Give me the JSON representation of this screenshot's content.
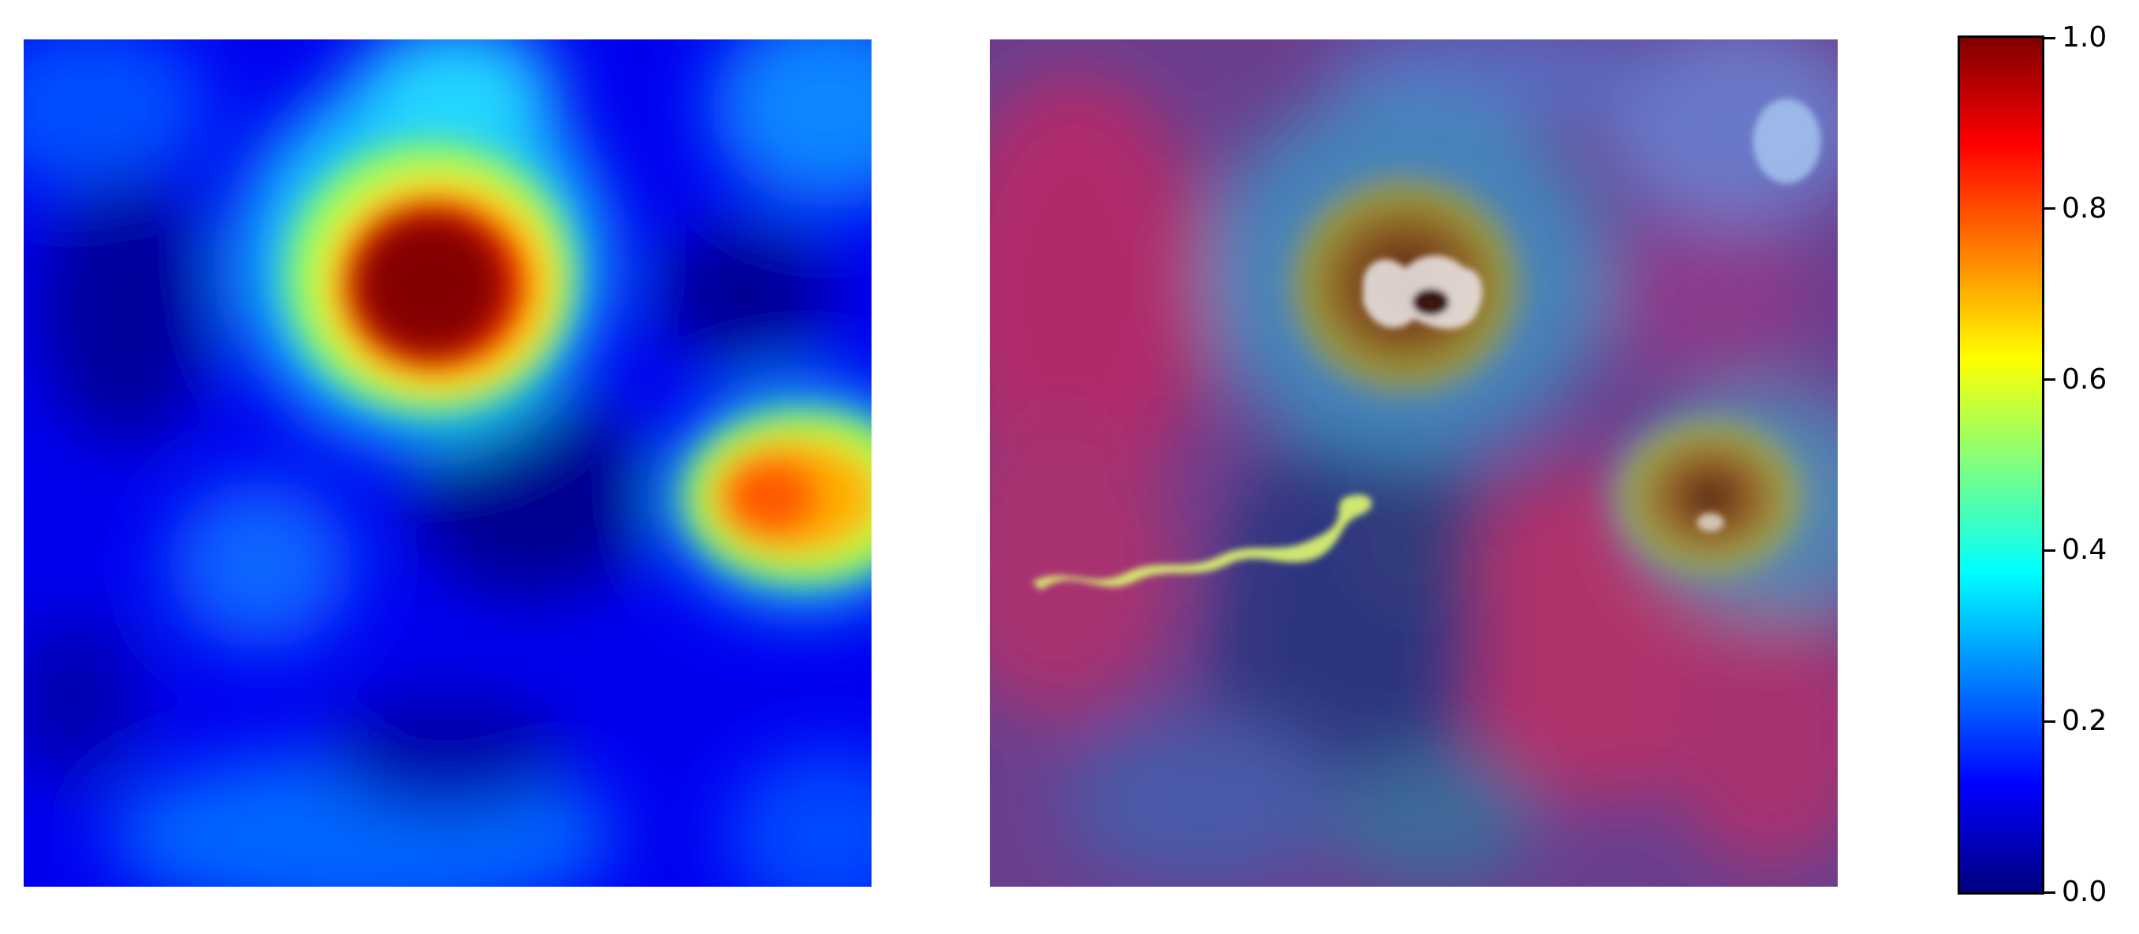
{
  "chart_data": [
    {
      "type": "heatmap",
      "panel": "activation map",
      "colormap": "jet",
      "value_range": [
        0,
        1
      ],
      "hotspots": [
        {
          "region": "upper-center",
          "peak": 1.0
        },
        {
          "region": "right-middle",
          "peak": 0.85
        },
        {
          "region": "lower-left",
          "peak": 0.3
        }
      ],
      "axes": "off"
    },
    {
      "type": "heatmap",
      "panel": "overlay on satellite image",
      "colormap": "jet",
      "value_range": [
        0,
        1
      ],
      "axes": "off"
    }
  ],
  "colorbar": {
    "colormap": "jet",
    "min": 0.0,
    "max": 1.0,
    "tick_labels": [
      "0.0",
      "0.2",
      "0.4",
      "0.6",
      "0.8",
      "1.0"
    ],
    "tick_values": [
      0.0,
      0.2,
      0.4,
      0.6,
      0.8,
      1.0
    ]
  },
  "colors": {
    "jet_stops": [
      "#00007f",
      "#0000ff",
      "#007fff",
      "#00ffff",
      "#7fff7f",
      "#ffff00",
      "#ff7f00",
      "#ff0000",
      "#7f0000"
    ]
  }
}
